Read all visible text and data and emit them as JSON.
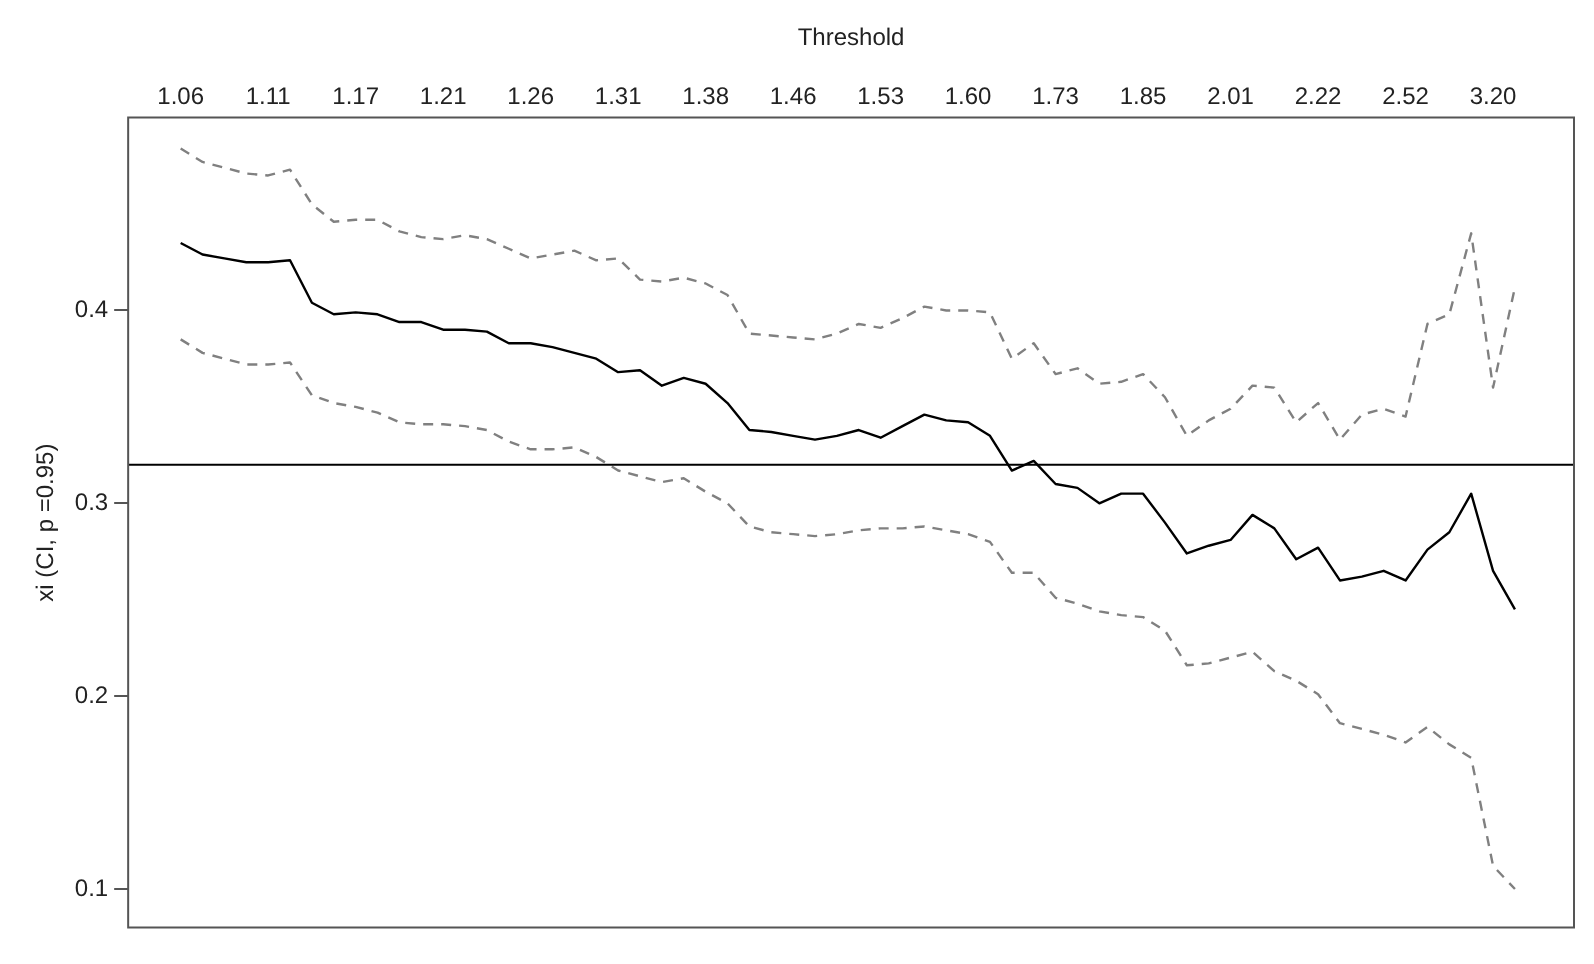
{
  "chart_data": {
    "type": "line",
    "xlabel": "Threshold",
    "ylabel": "xi (CI, p =0.95)",
    "marker": "none",
    "grid": false,
    "legend": false,
    "categories": [
      "1.06",
      null,
      null,
      null,
      "1.11",
      null,
      null,
      null,
      "1.17",
      null,
      null,
      null,
      "1.21",
      null,
      null,
      null,
      "1.26",
      null,
      null,
      null,
      "1.31",
      null,
      null,
      null,
      "1.38",
      null,
      null,
      null,
      "1.46",
      null,
      null,
      null,
      "1.53",
      null,
      null,
      null,
      "1.60",
      null,
      null,
      null,
      "1.73",
      null,
      null,
      null,
      "1.85",
      null,
      null,
      null,
      "2.01",
      null,
      null,
      null,
      "2.22",
      null,
      null,
      null,
      "2.52",
      null,
      null,
      null,
      "3.20",
      null
    ],
    "ylim": [
      0.08,
      0.5
    ],
    "yticks": [
      0.1,
      0.2,
      0.3,
      0.4
    ],
    "ref_lines": [
      {
        "axis": "y",
        "value": 0.32,
        "color": "#000000"
      }
    ],
    "series": [
      {
        "color": "#000000",
        "line_style": "solid",
        "values": [
          0.435,
          0.429,
          0.427,
          0.425,
          0.425,
          0.426,
          0.404,
          0.398,
          0.399,
          0.398,
          0.394,
          0.394,
          0.39,
          0.39,
          0.389,
          0.383,
          0.383,
          0.381,
          0.378,
          0.375,
          0.368,
          0.369,
          0.361,
          0.365,
          0.362,
          0.352,
          0.338,
          0.337,
          0.335,
          0.333,
          0.335,
          0.338,
          0.334,
          0.34,
          0.346,
          0.343,
          0.342,
          0.335,
          0.317,
          0.322,
          0.31,
          0.308,
          0.3,
          0.305,
          0.305,
          0.29,
          0.274,
          0.278,
          0.281,
          0.294,
          0.287,
          0.271,
          0.277,
          0.26,
          0.262,
          0.265,
          0.26,
          0.276,
          0.285,
          0.305,
          0.265,
          0.245
        ]
      },
      {
        "color": "#808080",
        "line_style": "dashed",
        "values": [
          0.484,
          0.477,
          0.474,
          0.471,
          0.47,
          0.473,
          0.455,
          0.446,
          0.447,
          0.447,
          0.441,
          0.438,
          0.437,
          0.439,
          0.437,
          0.432,
          0.427,
          0.429,
          0.431,
          0.426,
          0.427,
          0.416,
          0.415,
          0.417,
          0.414,
          0.408,
          0.388,
          0.387,
          0.386,
          0.385,
          0.388,
          0.393,
          0.391,
          0.396,
          0.402,
          0.4,
          0.4,
          0.399,
          0.375,
          0.383,
          0.367,
          0.37,
          0.362,
          0.363,
          0.367,
          0.355,
          0.335,
          0.343,
          0.349,
          0.361,
          0.36,
          0.342,
          0.352,
          0.333,
          0.346,
          0.349,
          0.345,
          0.393,
          0.398,
          0.44,
          0.36,
          0.412
        ]
      },
      {
        "color": "#808080",
        "line_style": "dashed",
        "values": [
          0.385,
          0.378,
          0.375,
          0.372,
          0.372,
          0.373,
          0.356,
          0.352,
          0.35,
          0.347,
          0.342,
          0.341,
          0.341,
          0.34,
          0.338,
          0.332,
          0.328,
          0.328,
          0.329,
          0.324,
          0.317,
          0.314,
          0.311,
          0.313,
          0.306,
          0.3,
          0.288,
          0.285,
          0.284,
          0.283,
          0.284,
          0.286,
          0.287,
          0.287,
          0.288,
          0.286,
          0.284,
          0.28,
          0.264,
          0.264,
          0.251,
          0.248,
          0.244,
          0.242,
          0.241,
          0.234,
          0.216,
          0.217,
          0.22,
          0.223,
          0.213,
          0.208,
          0.201,
          0.186,
          0.183,
          0.18,
          0.176,
          0.184,
          0.175,
          0.168,
          0.112,
          0.1
        ]
      }
    ]
  }
}
